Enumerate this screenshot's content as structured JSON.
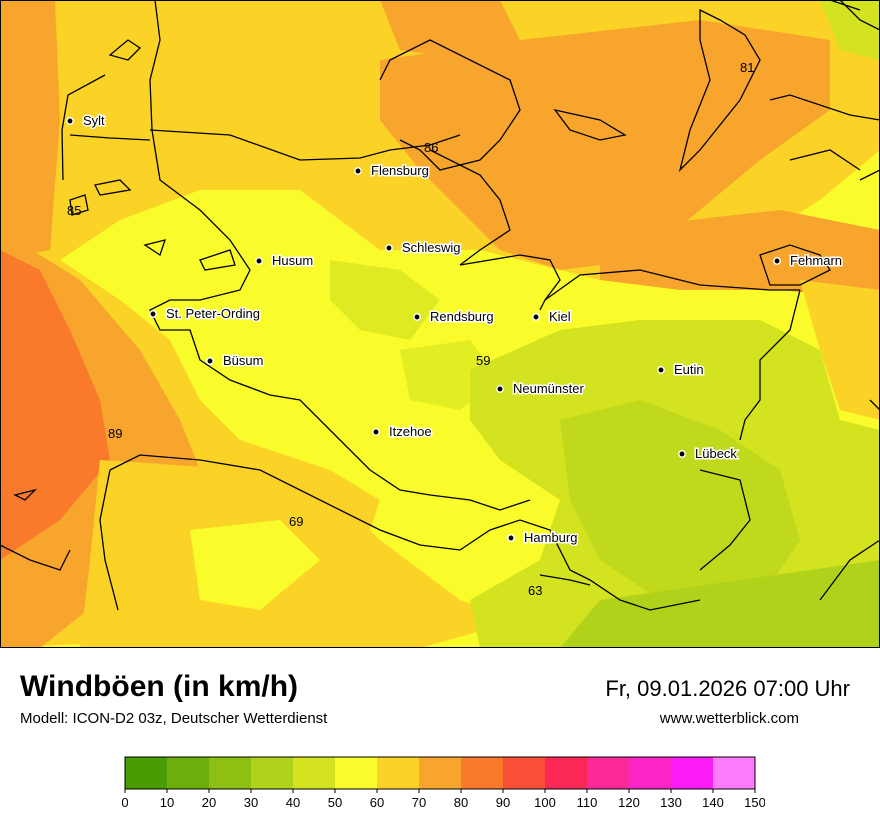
{
  "map": {
    "cities": [
      {
        "name": "Sylt"
      },
      {
        "name": "Flensburg"
      },
      {
        "name": "Schleswig"
      },
      {
        "name": "Husum"
      },
      {
        "name": "Fehmarn"
      },
      {
        "name": "St. Peter-Ording"
      },
      {
        "name": "Rendsburg"
      },
      {
        "name": "Kiel"
      },
      {
        "name": "Büsum"
      },
      {
        "name": "Eutin"
      },
      {
        "name": "Neumünster"
      },
      {
        "name": "Itzehoe"
      },
      {
        "name": "Lübeck"
      },
      {
        "name": "Hamburg"
      }
    ],
    "values": [
      "81",
      "86",
      "85",
      "59",
      "89",
      "69",
      "63"
    ]
  },
  "header": {
    "title": "Windböen (in km/h)",
    "subtitle": "Modell: ICON-D2 03z, Deutscher Wetterdienst",
    "datetime": "Fr, 09.01.2026 07:00 Uhr",
    "website": "www.wetterblick.com"
  },
  "legend": {
    "ticks": [
      "0",
      "10",
      "20",
      "30",
      "40",
      "50",
      "60",
      "70",
      "80",
      "90",
      "100",
      "110",
      "120",
      "130",
      "140",
      "150"
    ],
    "colors": [
      "#4a9c05",
      "#6caf0d",
      "#8dc012",
      "#b1d21a",
      "#d4e31f",
      "#f9fc2a",
      "#fad326",
      "#f8a52d",
      "#fa7a2b",
      "#fb4e36",
      "#fb2755",
      "#fb2a98",
      "#fb25c7",
      "#fc1cf6",
      "#fd7cfb"
    ]
  },
  "colors": {
    "yellow": "#f9fc2a",
    "gold": "#fad326",
    "orange": "#f8a52d",
    "deep_orange": "#fa7a2b",
    "lime": "#d4e31f",
    "green": "#b1d21a"
  }
}
